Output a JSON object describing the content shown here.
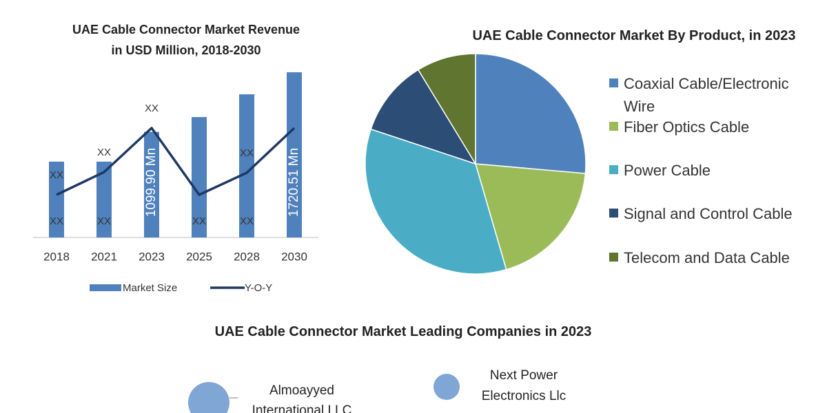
{
  "chart_data": [
    {
      "type": "bar",
      "title": "UAE Cable Connector Market Revenue in USD Million, 2018-2030",
      "categories": [
        "2018",
        "2021",
        "2023",
        "2025",
        "2028",
        "2030"
      ],
      "series": [
        {
          "name": "Market Size",
          "color": "#4f81bd",
          "values": [
            790,
            790,
            1099.9,
            1254,
            1491,
            1720.51
          ],
          "value_labels": [
            "XX",
            "XX",
            "1099.90 Mn",
            "XX",
            "XX",
            "1720.51 Mn"
          ]
        },
        {
          "name": "Y-O-Y",
          "type": "line",
          "color": "#1f3864",
          "values": [
            6.2,
            9.5,
            15.9,
            6.2,
            9.4,
            15.9
          ],
          "value_labels": [
            "XX",
            "XX",
            "XX",
            null,
            "XX",
            null
          ]
        }
      ]
    },
    {
      "type": "pie",
      "title": "UAE Cable Connector Market By Product, in 2023",
      "categories": [
        "Coaxial Cable/Electronic Wire",
        "Fiber Optics Cable",
        "Power Cable",
        "Signal and Control Cable",
        "Telecom and Data Cable"
      ],
      "values": [
        26.4,
        19.1,
        34.6,
        11.2,
        8.7
      ],
      "colors": [
        "#4f81bd",
        "#9bbb59",
        "#4bacc6",
        "#2c4d75",
        "#5f7530"
      ]
    }
  ],
  "companies": {
    "title": "UAE Cable Connector Market Leading Companies in 2023",
    "items": [
      "Almoayyed International LLC",
      "Next Power Electronics Llc"
    ]
  }
}
